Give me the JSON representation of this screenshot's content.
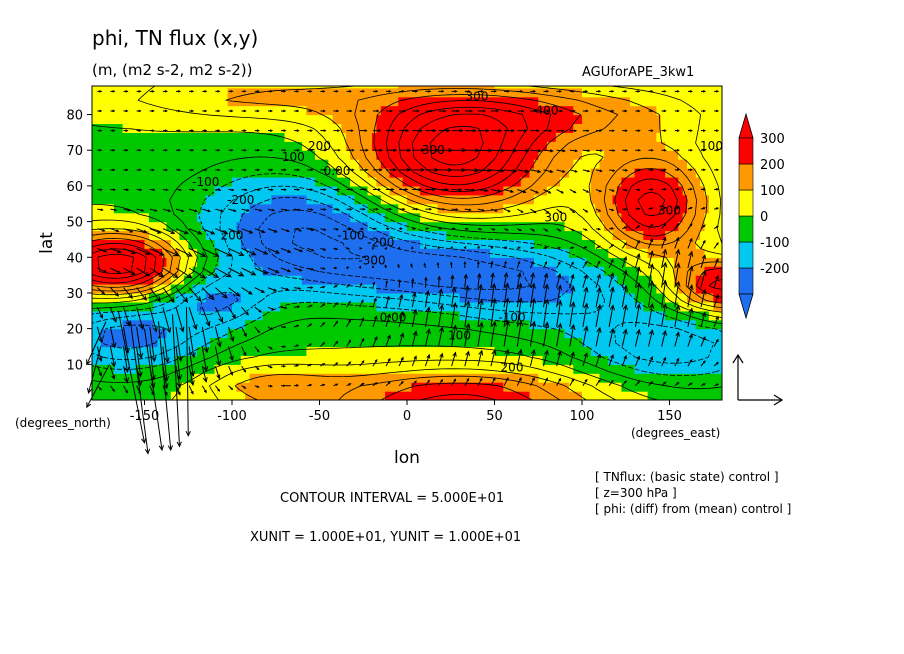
{
  "header": {
    "title": "phi, TN flux (x,y)",
    "subtitle": "(m, (m2 s-2, m2 s-2))",
    "experiment": "AGUforAPE_3kw1"
  },
  "footer": {
    "contour_interval": "CONTOUR INTERVAL = 5.000E+01",
    "units": "XUNIT = 1.000E+01, YUNIT = 1.000E+01",
    "notes": [
      "[ TNflux: (basic state) control ]",
      "[ z=300 hPa ]",
      "[ phi: (diff) from (mean) control ]"
    ]
  },
  "chart_data": {
    "type": "heatmap",
    "title": "phi, TN flux (x,y)",
    "subtitle": "(m, (m2 s-2, m2 s-2))",
    "xlabel": "lon",
    "ylabel": "lat",
    "x_unit_label": "(degrees_east)",
    "y_unit_label": "(degrees_north)",
    "xlim": [
      -180,
      180
    ],
    "ylim": [
      0,
      88
    ],
    "xticks": [
      -150,
      -100,
      -50,
      0,
      50,
      100,
      150
    ],
    "yticks": [
      10,
      20,
      30,
      40,
      50,
      60,
      70,
      80
    ],
    "colorbar": {
      "levels": [
        -200,
        -100,
        0,
        100,
        200,
        300
      ],
      "colors": [
        "#1e6ff0",
        "#00c8f0",
        "#00c800",
        "#ffff00",
        "#ff9900",
        "#ff0000"
      ],
      "under_color": "#1e6ff0",
      "over_color": "#ff0000"
    },
    "contour_labels": [
      {
        "lon": 40,
        "lat": 84,
        "text": "300"
      },
      {
        "lon": 80,
        "lat": 80,
        "text": "400"
      },
      {
        "lon": 15,
        "lat": 69,
        "text": "300"
      },
      {
        "lon": 174,
        "lat": 70,
        "text": "100"
      },
      {
        "lon": -50,
        "lat": 70,
        "text": "200"
      },
      {
        "lon": -65,
        "lat": 67,
        "text": "100"
      },
      {
        "lon": -40,
        "lat": 63,
        "text": "0.00"
      },
      {
        "lon": -115,
        "lat": 60,
        "text": "-100"
      },
      {
        "lon": -95,
        "lat": 55,
        "text": "-200"
      },
      {
        "lon": 85,
        "lat": 50,
        "text": "300"
      },
      {
        "lon": 150,
        "lat": 52,
        "text": "300"
      },
      {
        "lon": -32,
        "lat": 45,
        "text": "-100"
      },
      {
        "lon": -15,
        "lat": 43,
        "text": "-200"
      },
      {
        "lon": -20,
        "lat": 38,
        "text": "-300"
      },
      {
        "lon": -100,
        "lat": 45,
        "text": "200"
      },
      {
        "lon": -8,
        "lat": 22,
        "text": "0.00"
      },
      {
        "lon": 30,
        "lat": 17,
        "text": "100"
      },
      {
        "lon": 60,
        "lat": 22,
        "text": "-100"
      },
      {
        "lon": 60,
        "lat": 8,
        "text": "200"
      }
    ],
    "vector_field": "TN flux (x,y)",
    "reference_vector": {
      "x": 10,
      "y": 10
    }
  }
}
